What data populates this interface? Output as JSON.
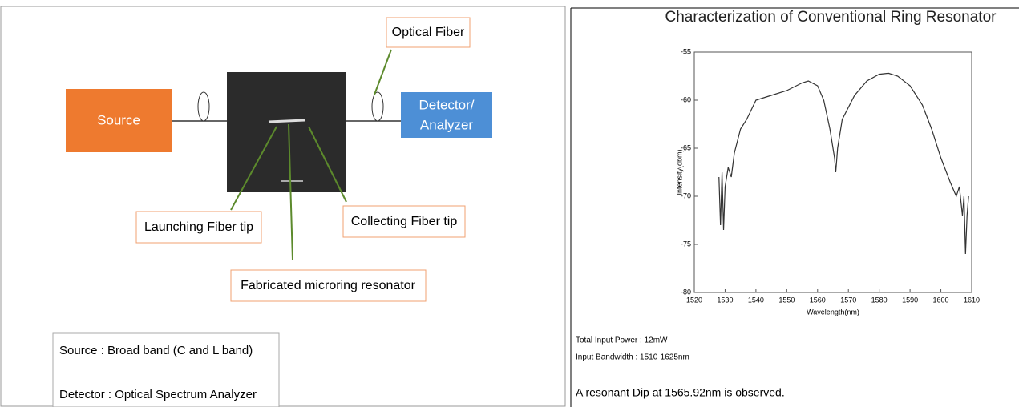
{
  "diagram": {
    "source_label": "Source",
    "detector_label": [
      "Detector/",
      "Analyzer"
    ],
    "optical_fiber_label": "Optical Fiber",
    "launching_label": "Launching Fiber tip",
    "collecting_label": "Collecting Fiber tip",
    "resonator_label": "Fabricated microring resonator",
    "info": [
      "Source : Broad band (C and L band)",
      "Detector : Optical Spectrum Analyzer"
    ]
  },
  "notes": [
    "Total Input Power : 12mW",
    "Input Bandwidth : 1510-1625nm"
  ],
  "conclusion": "A resonant Dip at 1565.92nm is observed.",
  "chart_data": {
    "type": "line",
    "title": "Characterization of Conventional Ring Resonator",
    "x_label": "Wavelength(nm)",
    "y_label": "Intensity(dbm)",
    "xlim": [
      1520,
      1610
    ],
    "ylim": [
      -80,
      -55
    ],
    "xticks": [
      1520,
      1530,
      1540,
      1550,
      1560,
      1570,
      1580,
      1590,
      1600,
      1610
    ],
    "yticks": [
      -80,
      -75,
      -70,
      -65,
      -60,
      -55
    ],
    "color": "#333333",
    "x": [
      1528,
      1528.5,
      1529,
      1529.5,
      1530,
      1531,
      1532,
      1533,
      1535,
      1537,
      1540,
      1545,
      1550,
      1555,
      1557,
      1560,
      1562,
      1564,
      1565.5,
      1565.9,
      1566.5,
      1568,
      1572,
      1576,
      1580,
      1583,
      1586,
      1590,
      1594,
      1597,
      1600,
      1603,
      1605,
      1606,
      1607,
      1607.5,
      1608,
      1608.5,
      1609
    ],
    "values": [
      -68,
      -73,
      -67.5,
      -73.5,
      -69,
      -67,
      -68,
      -65.5,
      -63,
      -62,
      -60,
      -59.5,
      -59,
      -58.2,
      -58,
      -58.5,
      -60,
      -63,
      -66,
      -67.5,
      -65,
      -62,
      -59.5,
      -58,
      -57.3,
      -57.2,
      -57.5,
      -58.5,
      -60.5,
      -63,
      -66,
      -68.5,
      -70,
      -69,
      -72,
      -70,
      -76,
      -72,
      -70
    ]
  }
}
